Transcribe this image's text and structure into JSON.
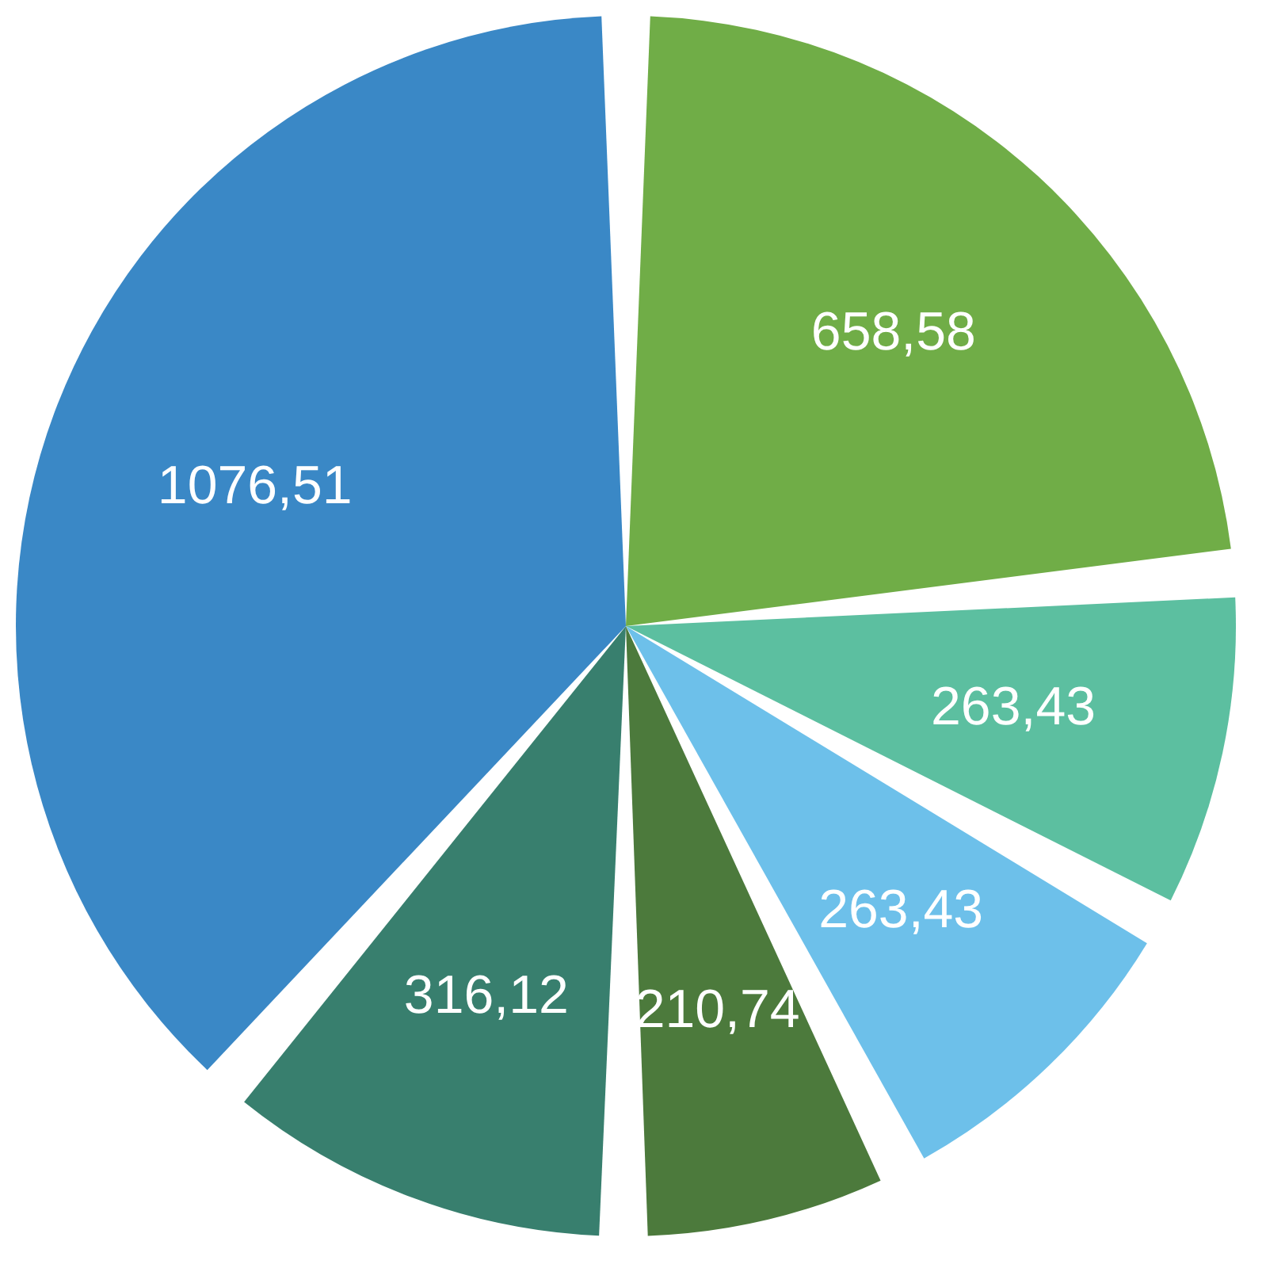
{
  "chart_data": {
    "type": "pie",
    "categories": [
      null,
      null,
      null,
      null,
      null,
      null
    ],
    "values": [
      658.58,
      263.43,
      263.43,
      210.74,
      316.12,
      1076.51
    ],
    "value_labels": [
      "658,58",
      "263,43",
      "263,43",
      "210,74",
      "316,12",
      "1076,51"
    ],
    "colors": [
      "#70ad47",
      "#5cbfa0",
      "#6dc0ea",
      "#4c7a3c",
      "#387f6e",
      "#3a88c6"
    ],
    "legend": false
  }
}
